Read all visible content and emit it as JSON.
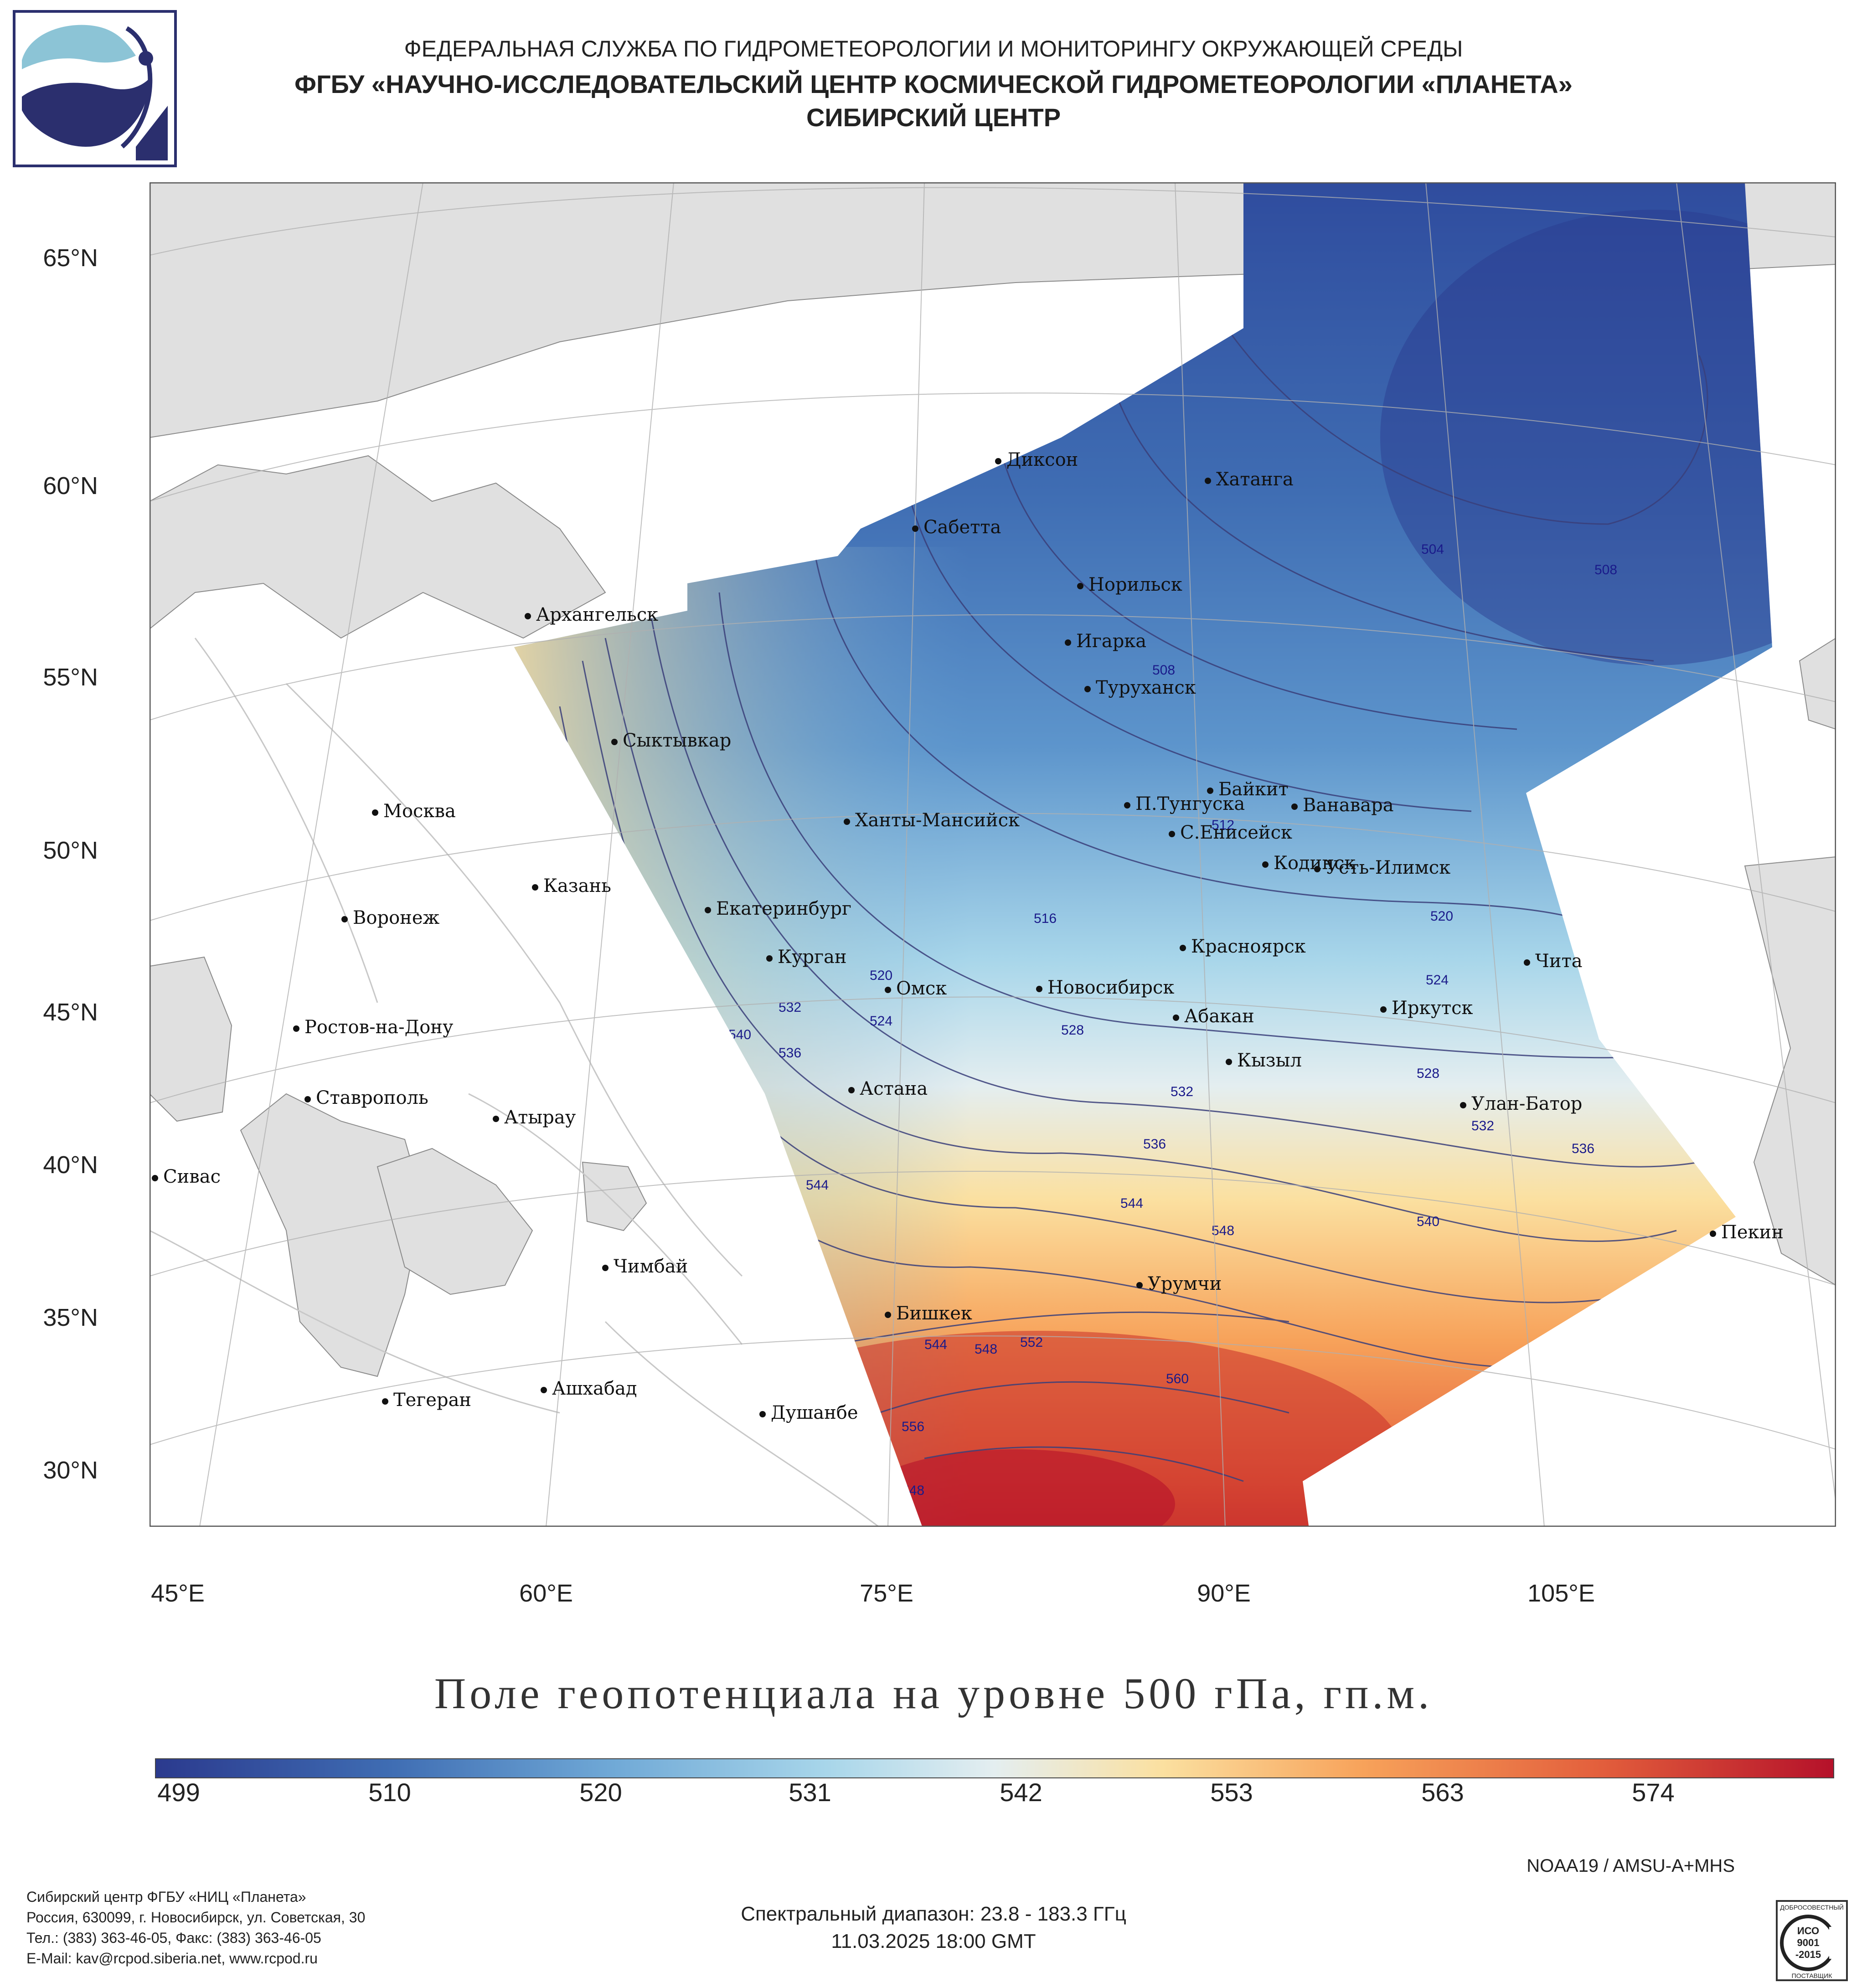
{
  "header": {
    "line1": "ФЕДЕРАЛЬНАЯ СЛУЖБА ПО ГИДРОМЕТЕОРОЛОГИИ И МОНИТОРИНГУ ОКРУЖАЮЩЕЙ СРЕДЫ",
    "line2": "ФГБУ «НАУЧНО-ИССЛЕДОВАТЕЛЬСКИЙ ЦЕНТР КОСМИЧЕСКОЙ ГИДРОМЕТЕОРОЛОГИИ «ПЛАНЕТА»",
    "line3": "СИБИРСКИЙ ЦЕНТР"
  },
  "map": {
    "lat_labels": [
      "65°N",
      "60°N",
      "55°N",
      "50°N",
      "45°N",
      "40°N",
      "35°N",
      "30°N"
    ],
    "lon_labels": [
      "45°E",
      "60°E",
      "75°E",
      "90°E",
      "105°E"
    ],
    "cities": [
      {
        "name": "Диксон"
      },
      {
        "name": "Хатанга"
      },
      {
        "name": "Сабетта"
      },
      {
        "name": "Архангельск"
      },
      {
        "name": "Норильск"
      },
      {
        "name": "Игарка"
      },
      {
        "name": "Туруханск"
      },
      {
        "name": "Сыктывкар"
      },
      {
        "name": "Байкит"
      },
      {
        "name": "Москва"
      },
      {
        "name": "Ханты-Мансийск"
      },
      {
        "name": "П.Тунгуска"
      },
      {
        "name": "Ванавара"
      },
      {
        "name": "С.Енисейск"
      },
      {
        "name": "Казань"
      },
      {
        "name": "Кодинск"
      },
      {
        "name": "Усть-Илимск"
      },
      {
        "name": "Екатеринбург"
      },
      {
        "name": "Воронеж"
      },
      {
        "name": "Красноярск"
      },
      {
        "name": "Курган"
      },
      {
        "name": "Чита"
      },
      {
        "name": "Омск"
      },
      {
        "name": "Новосибирск"
      },
      {
        "name": "Иркутск"
      },
      {
        "name": "Ростов-на-Дону"
      },
      {
        "name": "Абакан"
      },
      {
        "name": "Кызыл"
      },
      {
        "name": "Астана"
      },
      {
        "name": "Ставрополь"
      },
      {
        "name": "Улан-Батор"
      },
      {
        "name": "Атырау"
      },
      {
        "name": "Сивас"
      },
      {
        "name": "Пекин"
      },
      {
        "name": "Чимбай"
      },
      {
        "name": "Урумчи"
      },
      {
        "name": "Бишкек"
      },
      {
        "name": "Ашхабад"
      },
      {
        "name": "Тегеран"
      },
      {
        "name": "Душанбе"
      }
    ],
    "contour_labels": [
      "504",
      "508",
      "508",
      "512",
      "516",
      "520",
      "520",
      "524",
      "524",
      "528",
      "528",
      "532",
      "532",
      "532",
      "536",
      "536",
      "536",
      "540",
      "540",
      "544",
      "544",
      "544",
      "548",
      "548",
      "548",
      "552",
      "552",
      "556",
      "560"
    ]
  },
  "title": "Поле геопотенциала на уровне 500 гПа, гп.м.",
  "colorbar": {
    "ticks": [
      "499",
      "510",
      "520",
      "531",
      "542",
      "553",
      "563",
      "574"
    ],
    "colors": [
      "#2b3a8e",
      "#3f6db3",
      "#6fa8d6",
      "#a8d6ea",
      "#e4eef0",
      "#fbe0a0",
      "#f7a25a",
      "#e35f3c",
      "#b5112a"
    ]
  },
  "sensor": "NOAA19 / AMSU-A+MHS",
  "footer": {
    "org_lines": [
      "Сибирский центр ФГБУ «НИЦ «Планета»",
      "Россия, 630099, г. Новосибирск, ул. Советская, 30",
      "Тел.: (383) 363-46-05, Факс: (383) 363-46-05",
      "E-Mail: kav@rcpod.siberia.net, www.rcpod.ru"
    ],
    "spectral": "Спектральный диапазон: 23.8 - 183.3 ГГц",
    "datetime": "11.03.2025 18:00 GMT",
    "cert_lines": [
      "ДОБРОСОВЕСТНЫЙ",
      "ИСО",
      "9001",
      "-2015",
      "ПОСТАВЩИК"
    ]
  }
}
